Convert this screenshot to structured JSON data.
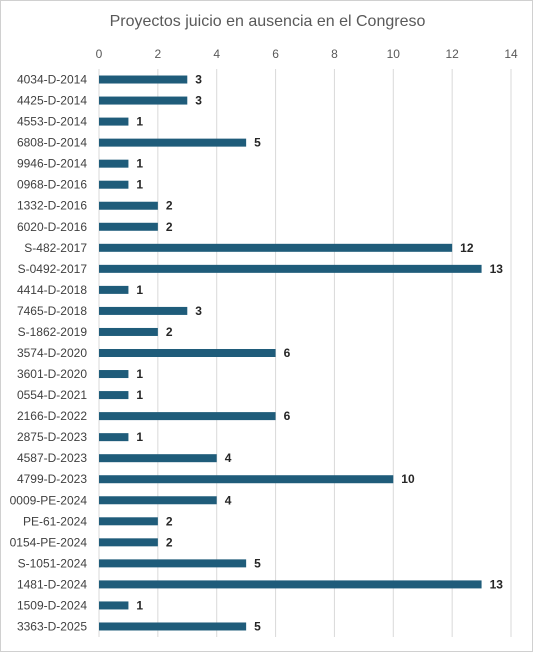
{
  "chart_data": {
    "type": "bar",
    "orientation": "horizontal",
    "title": "Proyectos juicio  en ausencia  en el Congreso",
    "xlabel": "",
    "ylabel": "",
    "xlim": [
      0,
      14
    ],
    "x_ticks": [
      0,
      2,
      4,
      6,
      8,
      10,
      12,
      14
    ],
    "grid": true,
    "legend": "none",
    "bar_color": "#1f5c7a",
    "categories": [
      "4034-D-2014",
      "4425-D-2014",
      "4553-D-2014",
      "6808-D-2014",
      "9946-D-2014",
      "0968-D-2016",
      "1332-D-2016",
      "6020-D-2016",
      "S-482-2017",
      "S-0492-2017",
      "4414-D-2018",
      "7465-D-2018",
      "S-1862-2019",
      "3574-D-2020",
      "3601-D-2020",
      "0554-D-2021",
      "2166-D-2022",
      "2875-D-2023",
      "4587-D-2023",
      "4799-D-2023",
      "0009-PE-2024",
      "PE-61-2024",
      "0154-PE-2024",
      "S-1051-2024",
      "1481-D-2024",
      "1509-D-2024",
      "3363-D-2025"
    ],
    "values": [
      3,
      3,
      1,
      5,
      1,
      1,
      2,
      2,
      12,
      13,
      1,
      3,
      2,
      6,
      1,
      1,
      6,
      1,
      4,
      10,
      4,
      2,
      2,
      5,
      13,
      1,
      5
    ]
  }
}
